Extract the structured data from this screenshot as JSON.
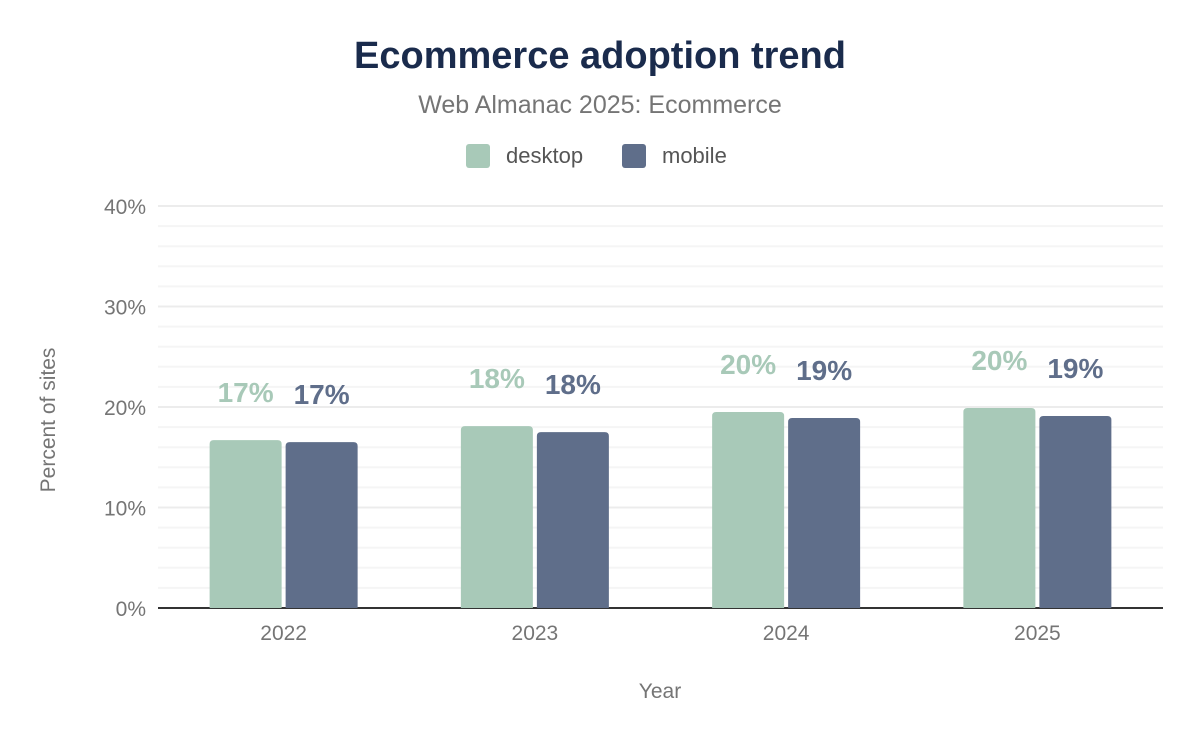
{
  "chart_data": {
    "type": "bar",
    "title": "Ecommerce adoption trend",
    "subtitle": "Web Almanac 2025: Ecommerce",
    "xlabel": "Year",
    "ylabel": "Percent of sites",
    "categories": [
      "2022",
      "2023",
      "2024",
      "2025"
    ],
    "series": [
      {
        "name": "desktop",
        "color": "#a8c9b8",
        "values": [
          16.7,
          18.1,
          19.5,
          19.9
        ],
        "labels": [
          "17%",
          "18%",
          "20%",
          "20%"
        ]
      },
      {
        "name": "mobile",
        "color": "#5f6e8a",
        "values": [
          16.5,
          17.5,
          18.9,
          19.1
        ],
        "labels": [
          "17%",
          "18%",
          "19%",
          "19%"
        ]
      }
    ],
    "ylim": [
      0,
      40
    ],
    "yticks": [
      "0%",
      "10%",
      "20%",
      "30%",
      "40%"
    ],
    "grid": true,
    "legend_position": "top"
  }
}
